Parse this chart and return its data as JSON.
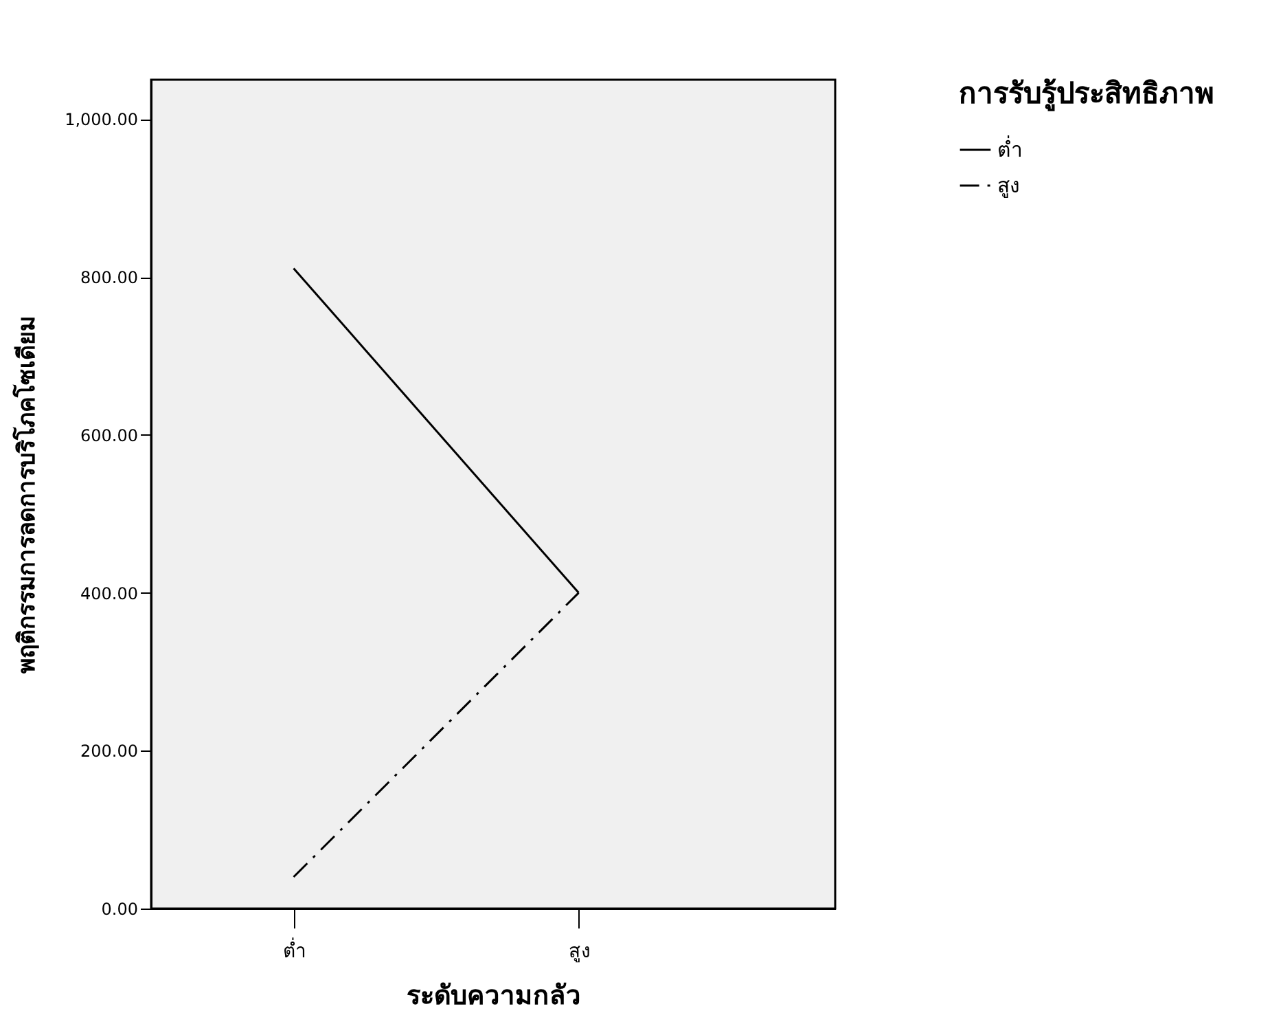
{
  "chart_data": {
    "type": "line",
    "xlabel": "ระดับความกลัว",
    "ylabel": "พฤติกรรมการลดการบริโภคโซเดียม",
    "legend_title": "การรับรู้ประสิทธิภาพ",
    "categories": [
      "ต่ำ",
      "สูง"
    ],
    "series": [
      {
        "name": "ต่ำ",
        "color": "#000000",
        "line_style": "solid",
        "values": [
          811,
          400
        ]
      },
      {
        "name": "สูง",
        "color": "#000000",
        "line_style": "dashed",
        "values": [
          40,
          400
        ]
      }
    ],
    "ylim": [
      0,
      1050
    ],
    "yticks": [
      {
        "value": 0,
        "label": "0.00"
      },
      {
        "value": 200,
        "label": "200.00"
      },
      {
        "value": 400,
        "label": "400.00"
      },
      {
        "value": 600,
        "label": "600.00"
      },
      {
        "value": 800,
        "label": "800.00"
      },
      {
        "value": 1000,
        "label": "1,000.00"
      }
    ],
    "grid": false,
    "legend": "top right",
    "marker": "none"
  }
}
